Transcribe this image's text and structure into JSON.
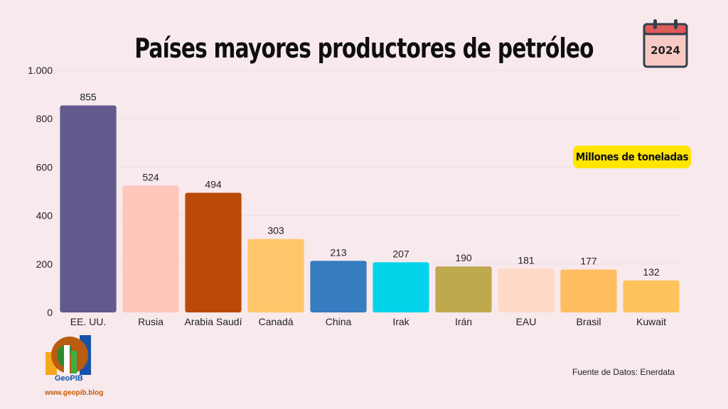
{
  "header": {
    "title": "Países mayores productores de petróleo",
    "year_badge": "2024"
  },
  "unit_badge": "Millones de toneladas",
  "source": "Fuente de Datos: Enerdata",
  "logo": {
    "name": "GeoPIB",
    "url": "www.geopib.blog"
  },
  "colors": {
    "background": "#f7e9ec",
    "badge": "#ffe500",
    "calendar_top": "#e05a5a",
    "calendar_body": "#f9c9c4"
  },
  "chart_data": {
    "type": "bar",
    "categories": [
      "EE. UU.",
      "Rusia",
      "Arabia Saudí",
      "Canadá",
      "China",
      "Irak",
      "Irán",
      "EAU",
      "Brasil",
      "Kuwait"
    ],
    "values": [
      855,
      524,
      494,
      303,
      213,
      207,
      190,
      181,
      177,
      132
    ],
    "colors": [
      "#62598c",
      "#ffc6bb",
      "#bb4a08",
      "#ffc56b",
      "#357cc0",
      "#05d3ea",
      "#bfa94f",
      "#ffd9c8",
      "#ffbd5f",
      "#ffc35e"
    ],
    "ylim": [
      0,
      1000
    ],
    "yticks": [
      0,
      200,
      400,
      600,
      800,
      1000
    ],
    "ytick_labels": [
      "0",
      "200",
      "400",
      "600",
      "800",
      "1.000"
    ],
    "grid": true,
    "legend": "none",
    "data_labels": true
  }
}
